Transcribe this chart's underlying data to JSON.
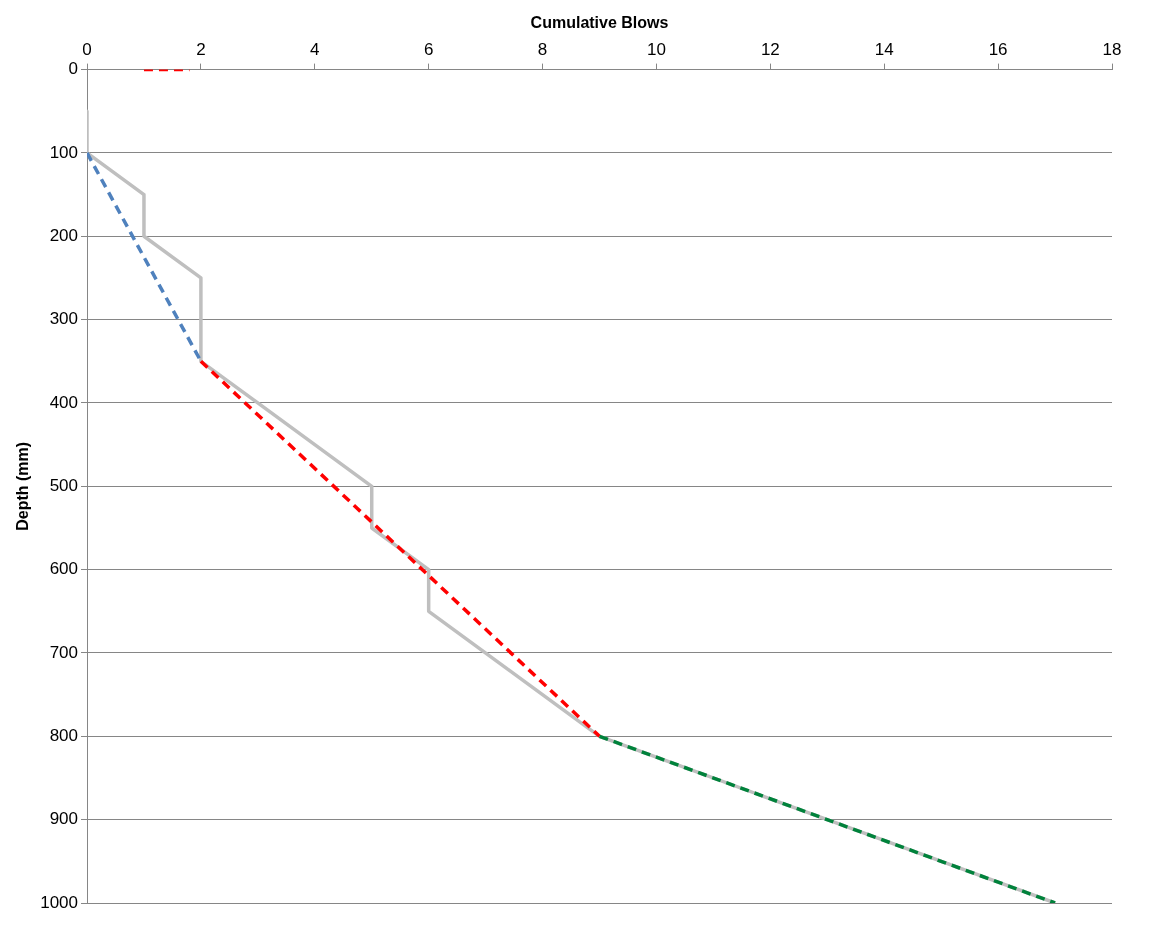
{
  "chart_data": {
    "type": "line",
    "xlabel": "Cumulative Blows",
    "ylabel": "Depth (mm)",
    "xlim": [
      0,
      18
    ],
    "xticks": [
      0,
      2,
      4,
      6,
      8,
      10,
      12,
      14,
      16,
      18
    ],
    "ylim": [
      1000,
      0
    ],
    "yticks": [
      0,
      100,
      200,
      300,
      400,
      500,
      600,
      700,
      800,
      900,
      1000
    ],
    "grid": "y",
    "legend": false,
    "marker": "none",
    "series": [
      {
        "color": "#bfbfbf",
        "line_style": "solid",
        "x": [
          0,
          0,
          1,
          1,
          2,
          2,
          5,
          5,
          6,
          6,
          9,
          13,
          17
        ],
        "values": [
          50,
          100,
          150,
          200,
          250,
          350,
          500,
          550,
          600,
          650,
          800,
          900,
          1000
        ]
      },
      {
        "color": "#4f81bd",
        "line_style": "dashed",
        "x": [
          0,
          2
        ],
        "values": [
          100,
          350
        ]
      },
      {
        "color": "#ff0000",
        "line_style": "dashed",
        "x": [
          2,
          9
        ],
        "values": [
          350,
          800
        ]
      },
      {
        "color": "#00823b",
        "line_style": "dashed",
        "x": [
          9,
          17
        ],
        "values": [
          800,
          1000
        ]
      },
      {
        "color": "#ff0000",
        "line_style": "dashed",
        "x": [
          1,
          1.8
        ],
        "values": [
          0,
          0
        ]
      }
    ]
  }
}
